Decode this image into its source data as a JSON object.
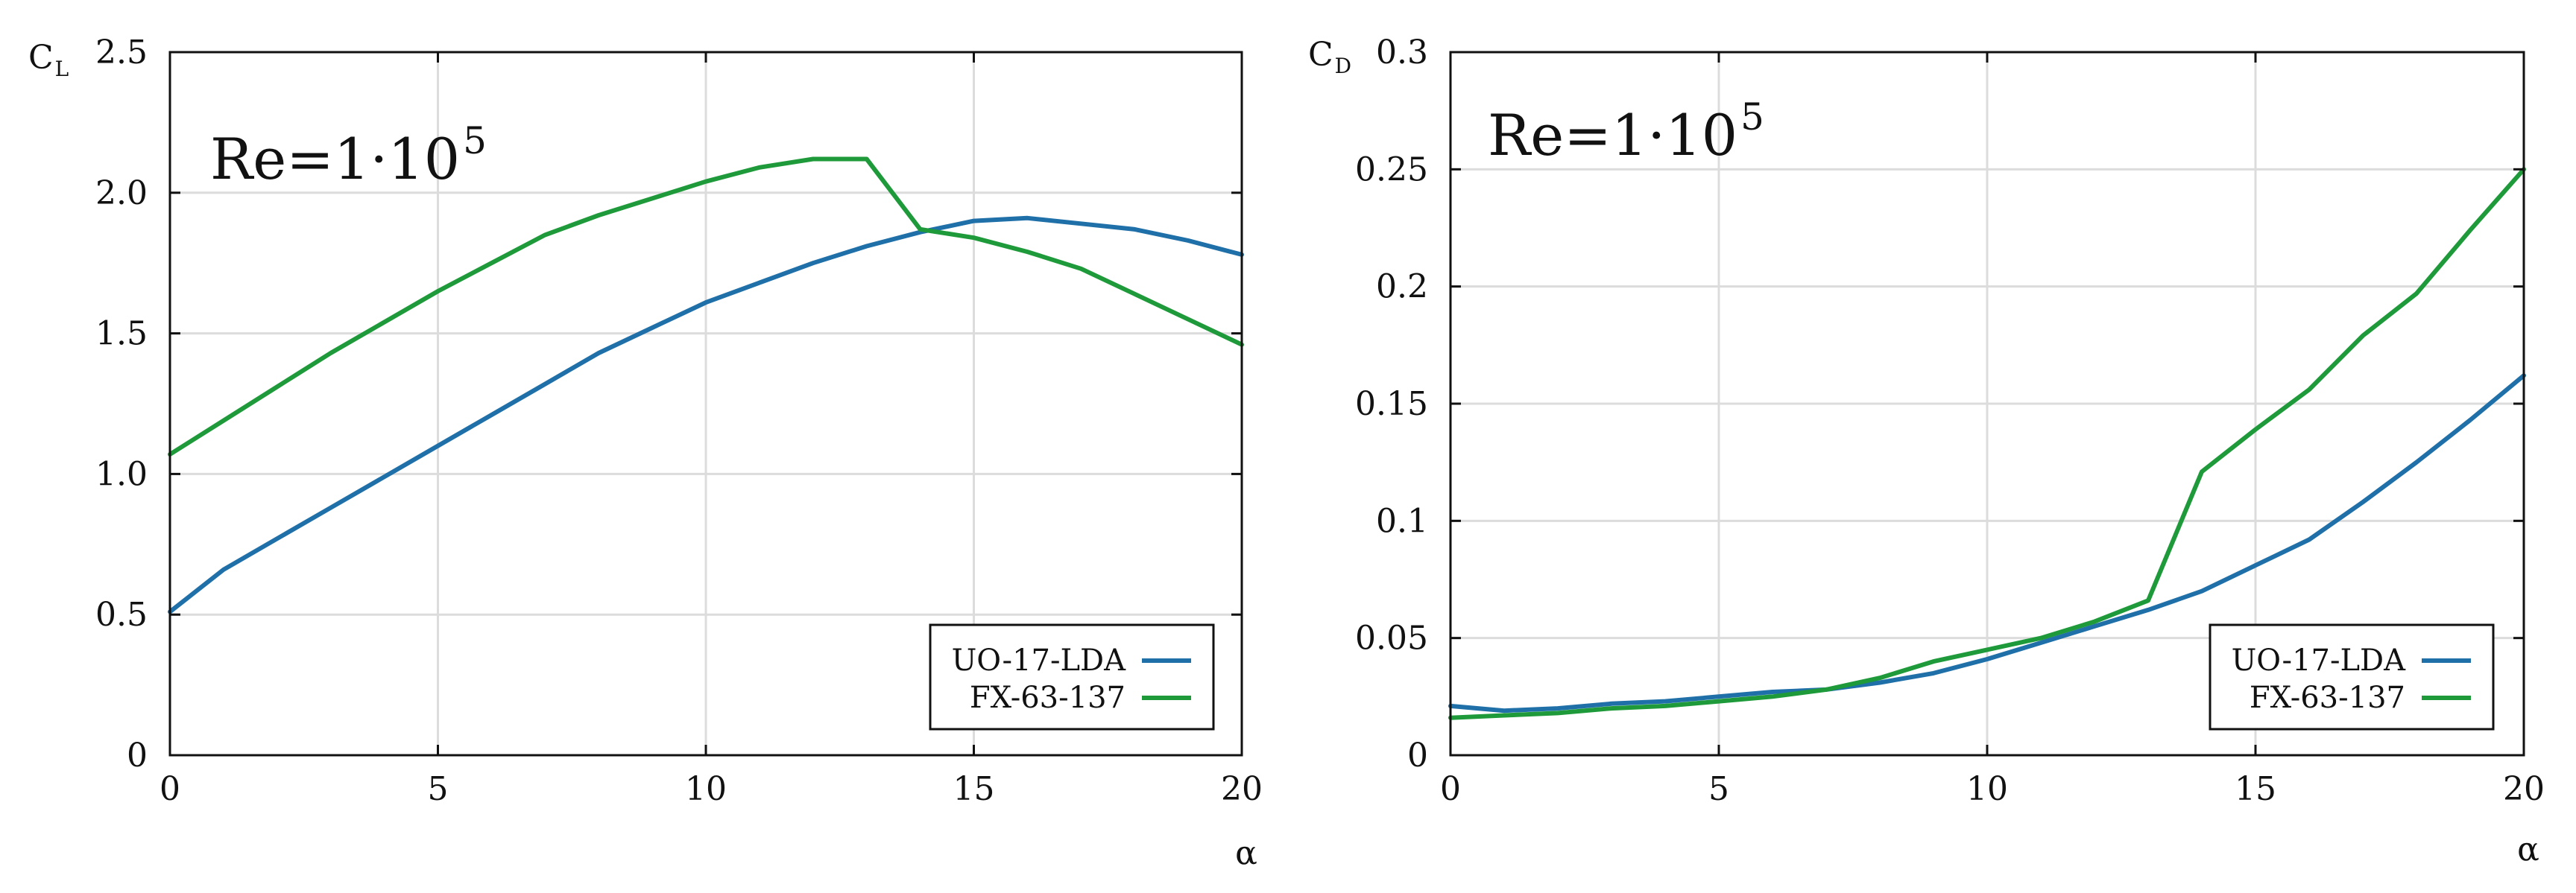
{
  "colors": {
    "uo": "#1f6fa8",
    "fx": "#1e9a3a"
  },
  "chart_data": [
    {
      "type": "line",
      "panel": "left",
      "title": "",
      "ylabel": {
        "main": "C",
        "sub": "L"
      },
      "xlabel": "α",
      "xlim": [
        0,
        20
      ],
      "ylim": [
        0,
        2.5
      ],
      "xticks": [
        0,
        5,
        10,
        15,
        20
      ],
      "xtick_labels": [
        "0",
        "5",
        "10",
        "15",
        "20"
      ],
      "yticks": [
        0,
        0.5,
        1.0,
        1.5,
        2.0,
        2.5
      ],
      "ytick_labels": [
        "0",
        "0.5",
        "1.0",
        "1.5",
        "2.0",
        "2.5"
      ],
      "grid": true,
      "annotation": {
        "base": "Re=1·10",
        "exponent": "5"
      },
      "legend_position": "bottom-right",
      "series": [
        {
          "name": "UO-17-LDA",
          "color": "#1f6fa8",
          "x": [
            0,
            1,
            2,
            3,
            4,
            5,
            6,
            7,
            8,
            9,
            10,
            11,
            12,
            13,
            14,
            15,
            16,
            17,
            18,
            19,
            20
          ],
          "y": [
            0.51,
            0.66,
            0.77,
            0.88,
            0.99,
            1.1,
            1.21,
            1.32,
            1.43,
            1.52,
            1.61,
            1.68,
            1.75,
            1.81,
            1.86,
            1.9,
            1.91,
            1.89,
            1.87,
            1.83,
            1.78
          ]
        },
        {
          "name": "FX-63-137",
          "color": "#1e9a3a",
          "x": [
            0,
            1,
            2,
            3,
            4,
            5,
            6,
            7,
            8,
            9,
            10,
            11,
            12,
            13,
            14,
            15,
            16,
            17,
            18,
            19,
            20
          ],
          "y": [
            1.07,
            1.19,
            1.31,
            1.43,
            1.54,
            1.65,
            1.75,
            1.85,
            1.92,
            1.98,
            2.04,
            2.09,
            2.12,
            2.12,
            1.87,
            1.84,
            1.79,
            1.73,
            1.64,
            1.55,
            1.46
          ]
        }
      ]
    },
    {
      "type": "line",
      "panel": "right",
      "title": "",
      "ylabel": {
        "main": "C",
        "sub": "D"
      },
      "xlabel": "α",
      "xlim": [
        0,
        20
      ],
      "ylim": [
        0,
        0.3
      ],
      "xticks": [
        0,
        5,
        10,
        15,
        20
      ],
      "xtick_labels": [
        "0",
        "5",
        "10",
        "15",
        "20"
      ],
      "yticks": [
        0,
        0.05,
        0.1,
        0.15,
        0.2,
        0.25,
        0.3
      ],
      "ytick_labels": [
        "0",
        "0.05",
        "0.1",
        "0.15",
        "0.2",
        "0.25",
        "0.3"
      ],
      "grid": true,
      "annotation": {
        "base": "Re=1·10",
        "exponent": "5"
      },
      "legend_position": "bottom-right",
      "series": [
        {
          "name": "UO-17-LDA",
          "color": "#1f6fa8",
          "x": [
            0,
            1,
            2,
            3,
            4,
            5,
            6,
            7,
            8,
            9,
            10,
            11,
            12,
            13,
            14,
            15,
            16,
            17,
            18,
            19,
            20
          ],
          "y": [
            0.021,
            0.019,
            0.02,
            0.022,
            0.023,
            0.025,
            0.027,
            0.028,
            0.031,
            0.035,
            0.041,
            0.048,
            0.055,
            0.062,
            0.07,
            0.081,
            0.092,
            0.108,
            0.125,
            0.143,
            0.162
          ]
        },
        {
          "name": "FX-63-137",
          "color": "#1e9a3a",
          "x": [
            0,
            1,
            2,
            3,
            4,
            5,
            6,
            7,
            8,
            9,
            10,
            11,
            12,
            13,
            14,
            15,
            16,
            17,
            18,
            19,
            20
          ],
          "y": [
            0.016,
            0.017,
            0.018,
            0.02,
            0.021,
            0.023,
            0.025,
            0.028,
            0.033,
            0.04,
            0.045,
            0.05,
            0.057,
            0.066,
            0.121,
            0.139,
            0.156,
            0.179,
            0.197,
            0.224,
            0.25
          ]
        }
      ]
    }
  ]
}
